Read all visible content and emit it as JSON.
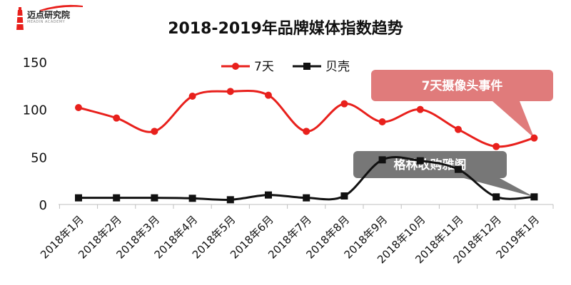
{
  "logo": {
    "name": "迈点研究院",
    "subtitle": "MEADIN ACADEMY"
  },
  "chart_data": {
    "type": "line",
    "title": "2018-2019年品牌媒体指数趋势",
    "categories": [
      "2018年1月",
      "2018年2月",
      "2018年3月",
      "2018年4月",
      "2018年5月",
      "2018年6月",
      "2018年7月",
      "2018年8月",
      "2018年9月",
      "2018年10月",
      "2018年11月",
      "2018年12月",
      "2019年1月"
    ],
    "series": [
      {
        "name": "7天",
        "color": "#e8201c",
        "values": [
          102,
          91,
          77,
          114,
          119,
          115,
          77,
          106,
          87,
          100,
          79,
          61,
          70
        ]
      },
      {
        "name": "贝壳",
        "color": "#111111",
        "values": [
          7,
          7,
          7,
          6.5,
          5,
          10,
          7,
          9,
          47,
          46,
          37,
          8,
          8
        ]
      }
    ],
    "ylim": [
      0,
      150
    ],
    "yticks": [
      0,
      50,
      100,
      150
    ],
    "legend": "top-center",
    "grid": false,
    "annotations": [
      {
        "text": "7天摄像头事件",
        "color": "#e07b7b",
        "target_series": 0,
        "target_index": 12
      },
      {
        "text": "格林收购雅阁",
        "color": "#777777",
        "target_series": 1,
        "target_index": 12
      }
    ]
  }
}
